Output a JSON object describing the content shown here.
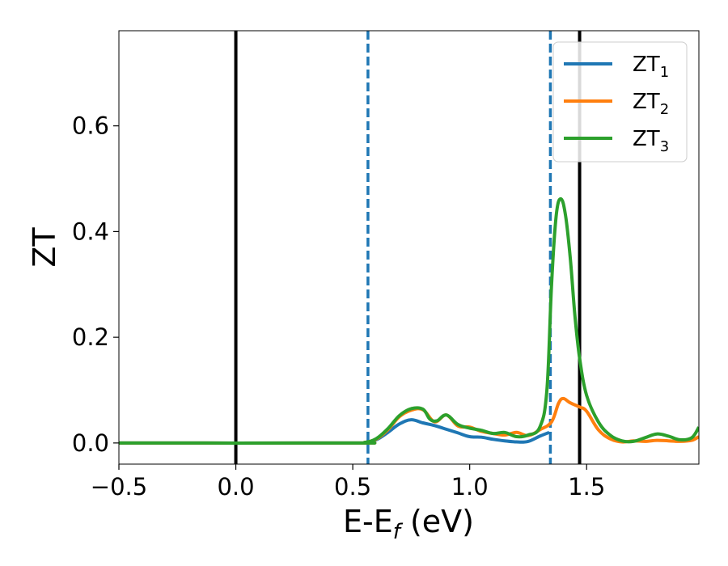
{
  "chart_data": {
    "type": "line",
    "xlabel": "E-E",
    "xlabel_sub": "f",
    "xlabel_unit": " (eV)",
    "ylabel": "ZT",
    "xlim": [
      -0.5,
      1.98
    ],
    "ylim": [
      -0.04,
      0.78
    ],
    "xticks": [
      -0.5,
      0.0,
      0.5,
      1.0,
      1.5
    ],
    "xtick_labels": [
      "−0.5",
      "0.0",
      "0.5",
      "1.0",
      "1.5"
    ],
    "yticks": [
      0.0,
      0.2,
      0.4,
      0.6
    ],
    "ytick_labels": [
      "0.0",
      "0.2",
      "0.4",
      "0.6"
    ],
    "grid": false,
    "legend_position": "top-right",
    "vlines": [
      {
        "x": 0.0,
        "style": "solid",
        "color": "#000000"
      },
      {
        "x": 1.47,
        "style": "solid",
        "color": "#000000"
      },
      {
        "x": 0.565,
        "style": "dashed",
        "color": "#1f77b4"
      },
      {
        "x": 1.345,
        "style": "dashed",
        "color": "#1f77b4"
      }
    ],
    "series": [
      {
        "name": "ZT",
        "name_sub": "1",
        "color": "#1f77b4",
        "x": [
          -0.5,
          0.5,
          0.55,
          0.6,
          0.65,
          0.7,
          0.75,
          0.8,
          0.85,
          0.9,
          0.95,
          1.0,
          1.05,
          1.1,
          1.15,
          1.2,
          1.25,
          1.3,
          1.34
        ],
        "y": [
          0.0,
          0.0,
          0.001,
          0.006,
          0.02,
          0.036,
          0.044,
          0.038,
          0.033,
          0.026,
          0.019,
          0.012,
          0.011,
          0.007,
          0.004,
          0.002,
          0.003,
          0.013,
          0.02
        ]
      },
      {
        "name": "ZT",
        "name_sub": "2",
        "color": "#ff7f0e",
        "x": [
          -0.5,
          0.5,
          0.55,
          0.6,
          0.65,
          0.7,
          0.75,
          0.8,
          0.85,
          0.9,
          0.95,
          1.0,
          1.05,
          1.1,
          1.15,
          1.2,
          1.25,
          1.3,
          1.35,
          1.38,
          1.4,
          1.43,
          1.47,
          1.5,
          1.55,
          1.6,
          1.65,
          1.7,
          1.75,
          1.8,
          1.85,
          1.9,
          1.95,
          1.98
        ],
        "y": [
          0.0,
          0.0,
          0.001,
          0.007,
          0.025,
          0.05,
          0.062,
          0.063,
          0.04,
          0.053,
          0.032,
          0.03,
          0.022,
          0.018,
          0.015,
          0.02,
          0.014,
          0.025,
          0.04,
          0.075,
          0.084,
          0.076,
          0.068,
          0.06,
          0.025,
          0.008,
          0.002,
          0.004,
          0.003,
          0.005,
          0.004,
          0.003,
          0.005,
          0.012
        ]
      },
      {
        "name": "ZT",
        "name_sub": "3",
        "color": "#2ca02c",
        "x": [
          -0.5,
          0.5,
          0.55,
          0.6,
          0.65,
          0.7,
          0.75,
          0.8,
          0.83,
          0.86,
          0.9,
          0.95,
          1.0,
          1.05,
          1.1,
          1.15,
          1.2,
          1.25,
          1.3,
          1.33,
          1.35,
          1.37,
          1.39,
          1.41,
          1.43,
          1.45,
          1.47,
          1.5,
          1.55,
          1.6,
          1.65,
          1.7,
          1.75,
          1.8,
          1.85,
          1.9,
          1.95,
          1.98
        ],
        "y": [
          0.0,
          0.0,
          0.001,
          0.008,
          0.027,
          0.052,
          0.065,
          0.064,
          0.045,
          0.042,
          0.053,
          0.035,
          0.028,
          0.024,
          0.018,
          0.02,
          0.012,
          0.015,
          0.03,
          0.1,
          0.3,
          0.43,
          0.462,
          0.43,
          0.35,
          0.24,
          0.16,
          0.09,
          0.04,
          0.015,
          0.004,
          0.003,
          0.01,
          0.017,
          0.013,
          0.006,
          0.01,
          0.03
        ]
      }
    ]
  }
}
